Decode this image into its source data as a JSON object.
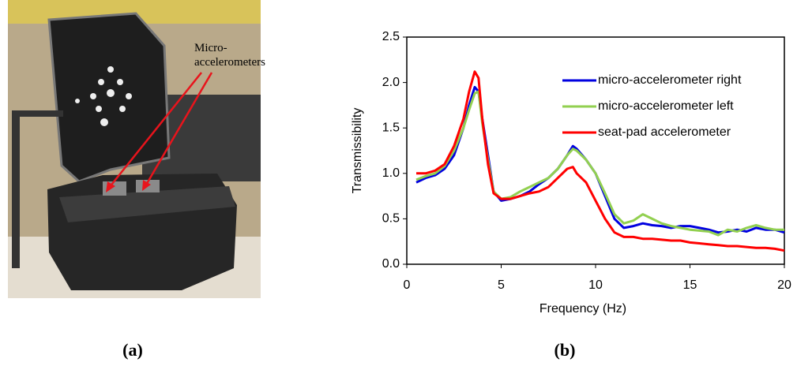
{
  "figure": {
    "photo_label": "Micro-\naccelerometers",
    "panel_labels": [
      "(a)",
      "(b)"
    ]
  },
  "chart_data": {
    "type": "line",
    "xlabel": "Frequency (Hz)",
    "ylabel": "Transmissibility",
    "x": [
      0.5,
      1,
      1.5,
      2,
      2.5,
      3,
      3.3,
      3.6,
      3.8,
      4,
      4.3,
      4.6,
      5,
      5.5,
      6,
      6.5,
      7,
      7.5,
      8,
      8.5,
      8.8,
      9,
      9.5,
      10,
      10.5,
      11,
      11.5,
      12,
      12.5,
      13,
      13.5,
      14,
      14.5,
      15,
      15.5,
      16,
      16.5,
      17,
      17.5,
      18,
      18.5,
      19,
      19.5,
      20
    ],
    "series": [
      {
        "name": "micro-accelerometer right",
        "color": "#0000e0",
        "values": [
          0.9,
          0.95,
          0.98,
          1.05,
          1.2,
          1.5,
          1.75,
          1.95,
          1.9,
          1.6,
          1.2,
          0.8,
          0.7,
          0.72,
          0.75,
          0.8,
          0.88,
          0.95,
          1.05,
          1.2,
          1.3,
          1.27,
          1.15,
          1.0,
          0.75,
          0.5,
          0.4,
          0.42,
          0.45,
          0.43,
          0.42,
          0.4,
          0.42,
          0.42,
          0.4,
          0.38,
          0.35,
          0.36,
          0.38,
          0.36,
          0.4,
          0.38,
          0.38,
          0.35
        ]
      },
      {
        "name": "micro-accelerometer left",
        "color": "#92d050",
        "values": [
          0.93,
          0.97,
          1.0,
          1.08,
          1.25,
          1.5,
          1.7,
          1.88,
          1.9,
          1.55,
          1.15,
          0.8,
          0.72,
          0.74,
          0.8,
          0.85,
          0.9,
          0.95,
          1.05,
          1.2,
          1.27,
          1.25,
          1.15,
          1.0,
          0.78,
          0.55,
          0.45,
          0.48,
          0.55,
          0.5,
          0.45,
          0.42,
          0.4,
          0.38,
          0.37,
          0.36,
          0.32,
          0.38,
          0.36,
          0.4,
          0.43,
          0.4,
          0.38,
          0.38
        ]
      },
      {
        "name": "seat-pad accelerometer",
        "color": "#ff0000",
        "values": [
          1.0,
          1.0,
          1.03,
          1.1,
          1.3,
          1.6,
          1.9,
          2.12,
          2.05,
          1.6,
          1.1,
          0.78,
          0.72,
          0.72,
          0.75,
          0.78,
          0.8,
          0.85,
          0.95,
          1.05,
          1.07,
          1.0,
          0.9,
          0.7,
          0.5,
          0.35,
          0.3,
          0.3,
          0.28,
          0.28,
          0.27,
          0.26,
          0.26,
          0.24,
          0.23,
          0.22,
          0.21,
          0.2,
          0.2,
          0.19,
          0.18,
          0.18,
          0.17,
          0.15
        ]
      }
    ],
    "xlim": [
      0,
      20
    ],
    "xticks": [
      0,
      5,
      10,
      15,
      20
    ],
    "ylim": [
      0,
      2.5
    ],
    "yticks": [
      {
        "value": 0,
        "label": "0.0"
      },
      0.5,
      {
        "value": 1,
        "label": "1.0"
      },
      1.5,
      {
        "value": 2,
        "label": "2.0"
      },
      2.5
    ],
    "legend": "upper right",
    "grid": false
  }
}
